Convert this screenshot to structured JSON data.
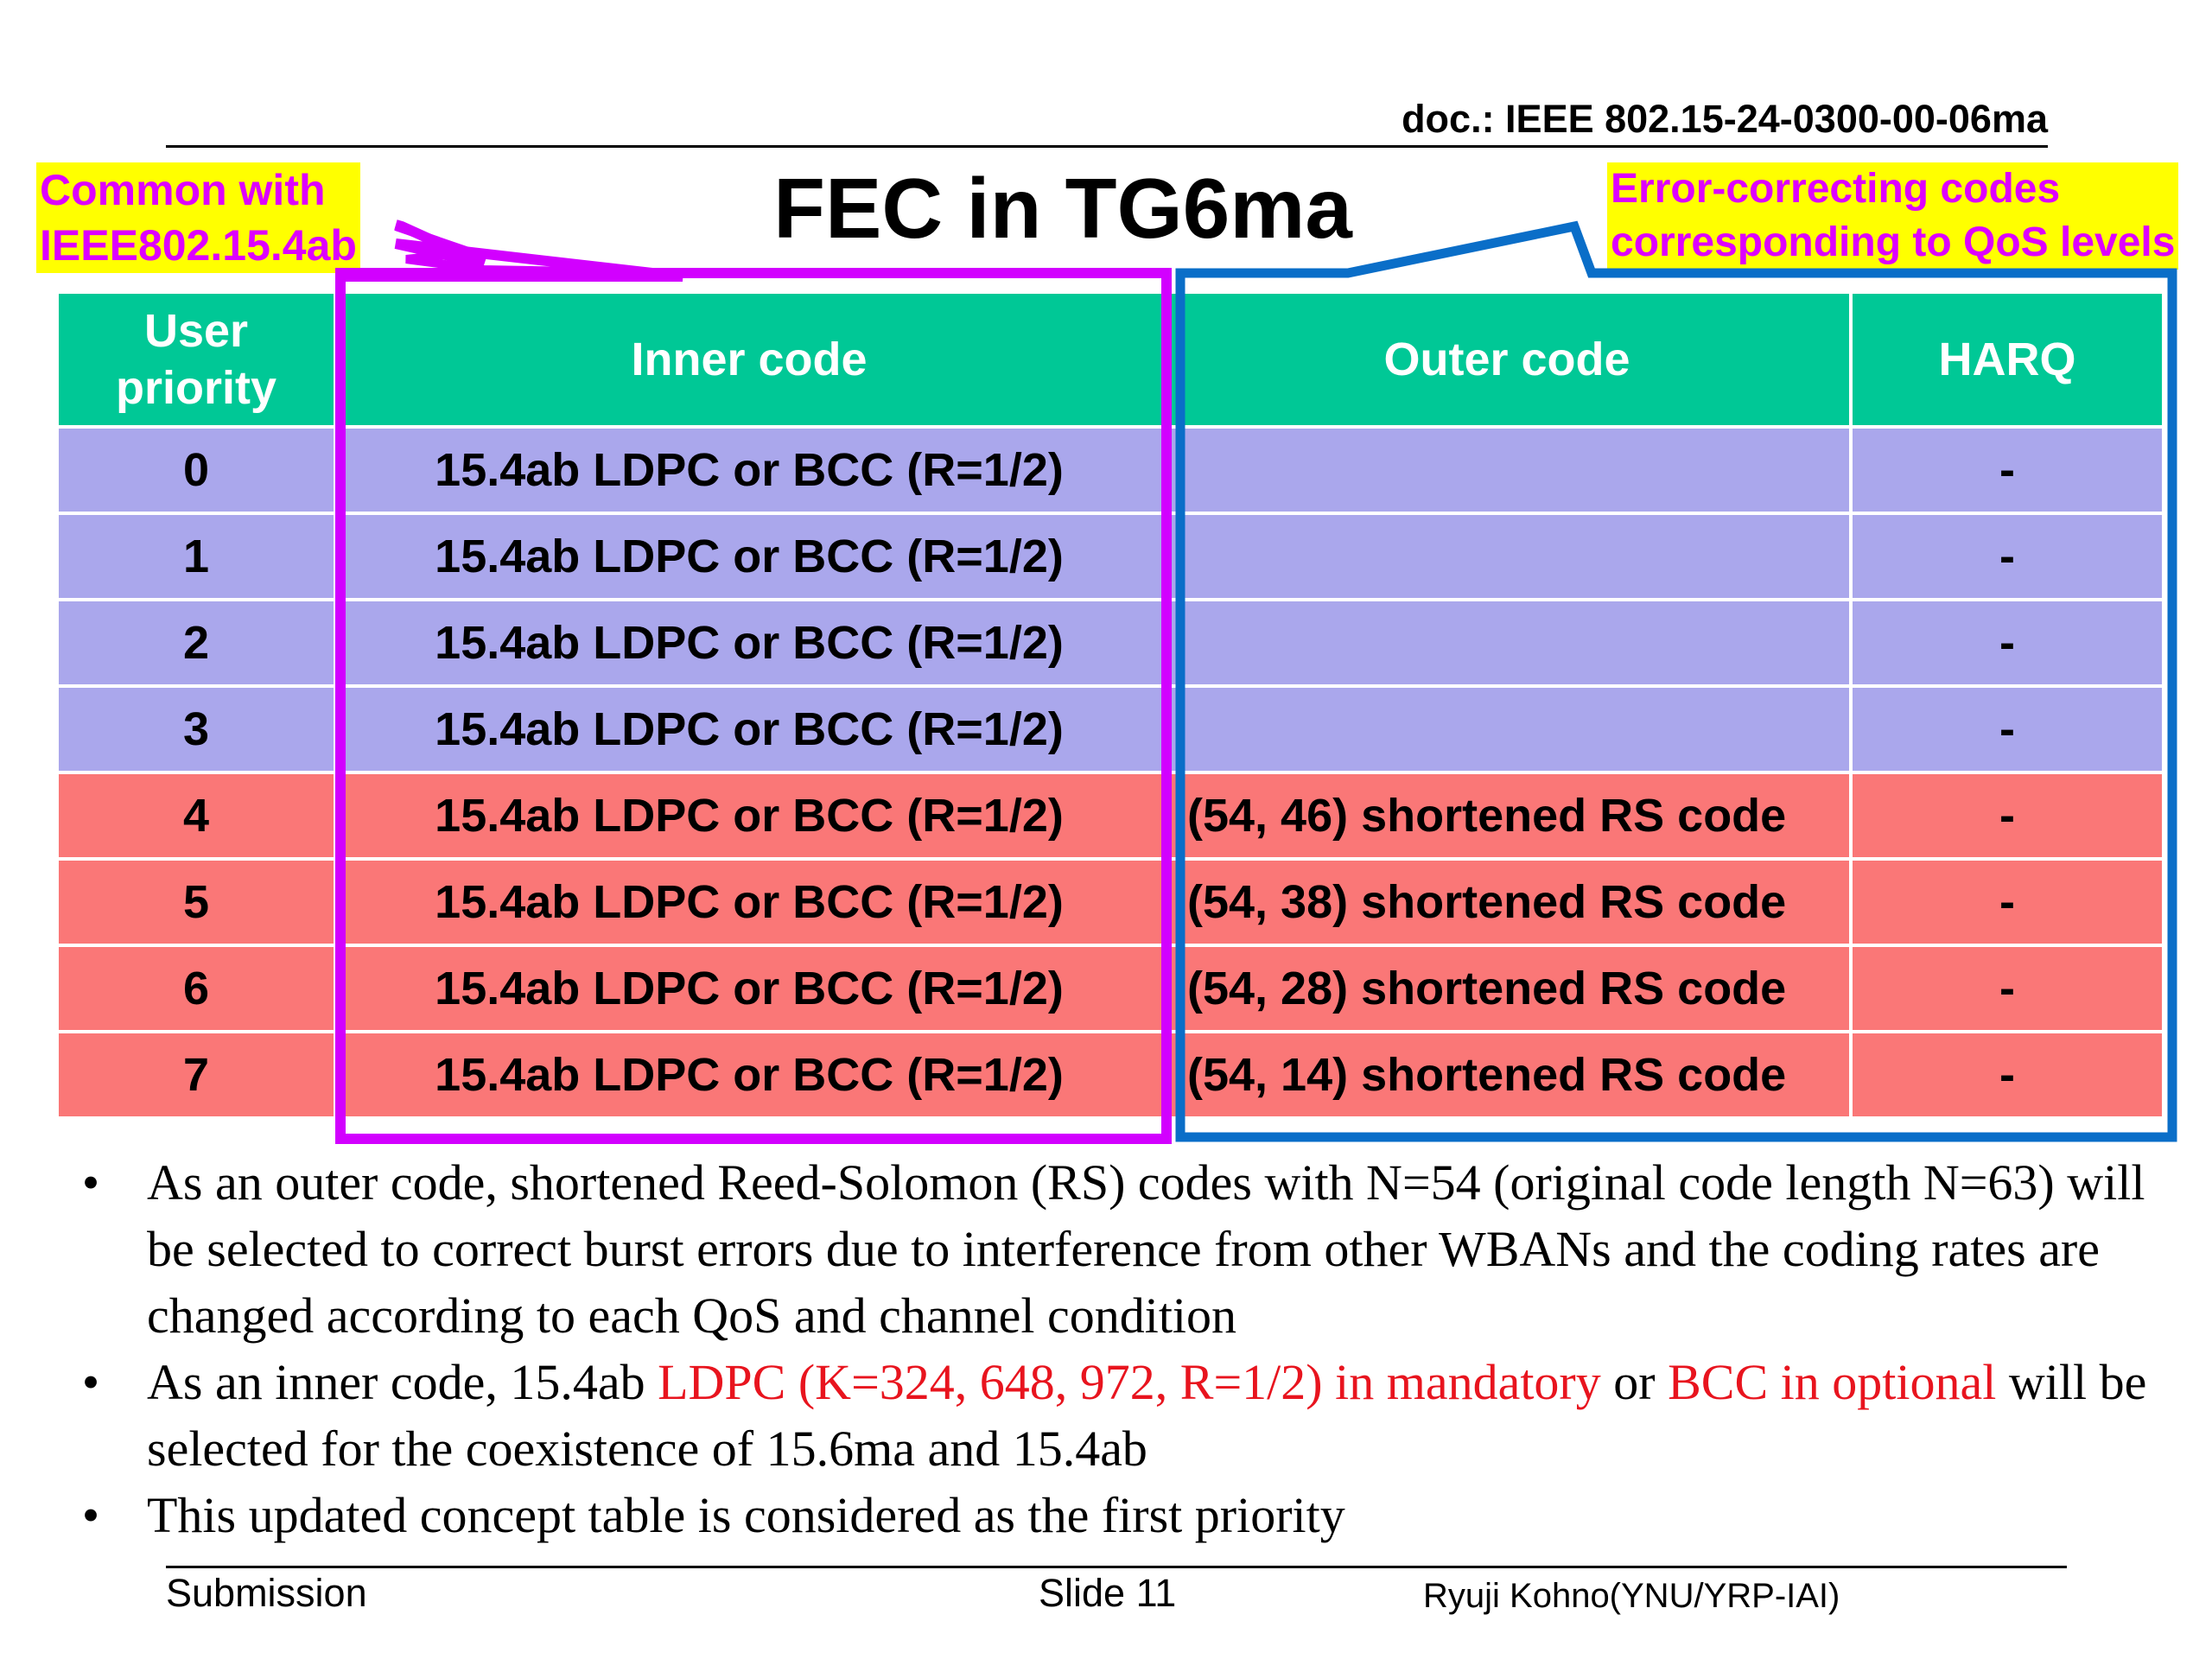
{
  "doc_id": "doc.: IEEE 802.15-24-0300-00-06ma",
  "title": "FEC in TG6ma",
  "callouts": {
    "left_line1": "Common with",
    "left_line2": "IEEE802.15.4ab",
    "right_line1": "Error-correcting codes",
    "right_line2": "corresponding to QoS levels"
  },
  "colors": {
    "header": "#00c896",
    "low_priority_rows": "#aaa7ec",
    "high_priority_rows": "#fa7777",
    "inner_frame": "#d200ff",
    "outer_frame": "#0a6ec8",
    "highlight": "#ffff00",
    "emphasis_text": "#e8141e"
  },
  "table": {
    "headers": {
      "priority_line1": "User",
      "priority_line2": "priority",
      "inner": "Inner code",
      "outer": "Outer code",
      "harq": "HARQ"
    },
    "rows": [
      {
        "priority": "0",
        "inner": "15.4ab LDPC or BCC (R=1/2)",
        "outer": "",
        "harq": "-"
      },
      {
        "priority": "1",
        "inner": "15.4ab LDPC or BCC  (R=1/2)",
        "outer": "",
        "harq": "-"
      },
      {
        "priority": "2",
        "inner": "15.4ab LDPC or BCC  (R=1/2)",
        "outer": "",
        "harq": "-"
      },
      {
        "priority": "3",
        "inner": "15.4ab LDPC or BCC  (R=1/2)",
        "outer": "",
        "harq": "-"
      },
      {
        "priority": "4",
        "inner": "15.4ab LDPC or BCC  (R=1/2)",
        "outer": "(54, 46) shortened RS code",
        "harq": "-"
      },
      {
        "priority": "5",
        "inner": "15.4ab LDPC or BCC  (R=1/2)",
        "outer": "(54, 38) shortened RS code",
        "harq": "-"
      },
      {
        "priority": "6",
        "inner": "15.4ab LDPC or BCC  (R=1/2)",
        "outer": "(54, 28) shortened RS code",
        "harq": "-"
      },
      {
        "priority": "7",
        "inner": "15.4ab LDPC or BCC  (R=1/2)",
        "outer": "(54, 14) shortened RS code",
        "harq": "-"
      }
    ]
  },
  "bullets": {
    "b1": "As an outer code, shortened Reed-Solomon (RS) codes with N=54 (original code length N=63) will be selected to correct burst errors due to interference from other WBANs and the coding rates are changed according to each QoS and channel condition",
    "b2_part1": "As an inner code, 15.4ab ",
    "b2_red1": "LDPC (K=324, 648, 972, R=1/2) in mandatory",
    "b2_part2": " or ",
    "b2_red2": "BCC in optional",
    "b2_part3": " will be selected for the coexistence of 15.6ma and 15.4ab",
    "b3": "This updated concept table is considered as the first priority",
    "marker": "•"
  },
  "footer": {
    "submission": "Submission",
    "slide": "Slide 11",
    "author": "Ryuji Kohno(YNU/YRP-IAI)"
  }
}
